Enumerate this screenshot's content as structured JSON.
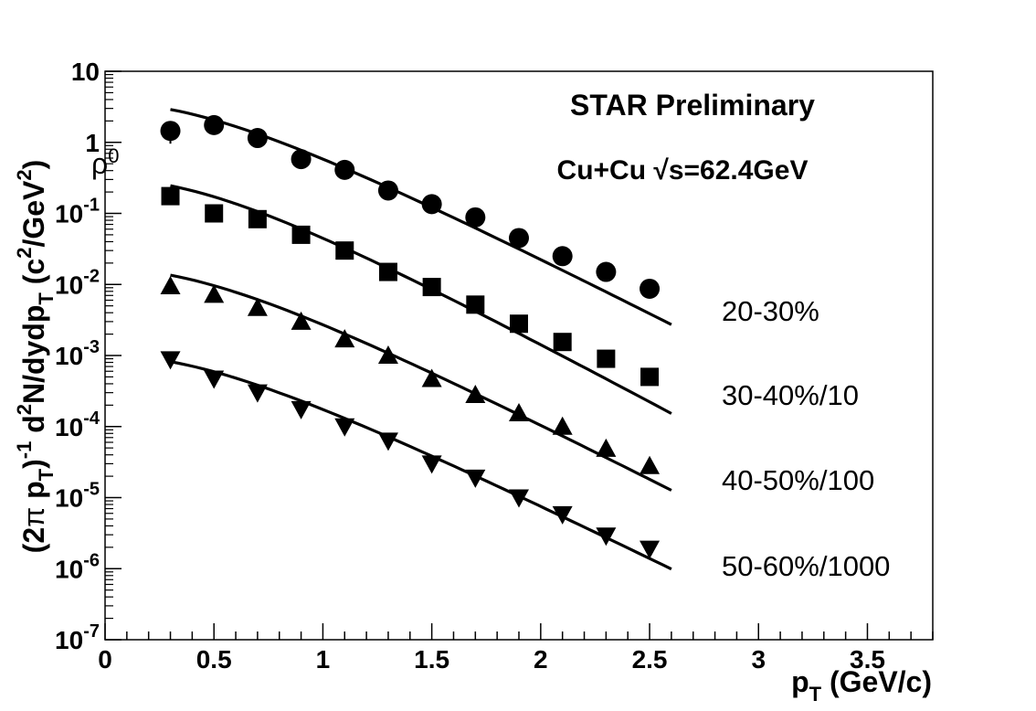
{
  "chart_data": {
    "type": "scatter",
    "title": "STAR Preliminary",
    "subtitle": "Cu+Cu √s=62.4GeV",
    "particle": "ρ",
    "particle_sup": "0",
    "xlabel": {
      "main": "p",
      "sub": "T",
      "unit": " (GeV/c)"
    },
    "ylabel": {
      "p1": "(2",
      "p2": "π",
      "p3": " p",
      "sub1": "T",
      "p4": ")",
      "sup1": "-1",
      "p5": "  d",
      "sup2": "2",
      "p6": "N/dydp",
      "sub2": "T",
      "p7": "  (c",
      "sup3": "2",
      "p8": "/GeV",
      "sup4": "2",
      "p9": ")"
    },
    "xlim": [
      0,
      3.8
    ],
    "ylim_log10": [
      -7,
      1
    ],
    "x_ticks": [
      0,
      0.5,
      1,
      1.5,
      2,
      2.5,
      3,
      3.5
    ],
    "x_tick_labels": [
      "0",
      "0.5",
      "1",
      "1.5",
      "2",
      "2.5",
      "3",
      "3.5"
    ],
    "y_ticks_log10": [
      -7,
      -6,
      -5,
      -4,
      -3,
      -2,
      -1,
      0,
      1
    ],
    "y_tick_labels": [
      {
        "base": "10",
        "exp": "-7"
      },
      {
        "base": "10",
        "exp": "-6"
      },
      {
        "base": "10",
        "exp": "-5"
      },
      {
        "base": "10",
        "exp": "-4"
      },
      {
        "base": "10",
        "exp": "-3"
      },
      {
        "base": "10",
        "exp": "-2"
      },
      {
        "base": "10",
        "exp": "-1"
      },
      {
        "base": "1",
        "exp": ""
      },
      {
        "base": "10",
        "exp": ""
      }
    ],
    "x": [
      0.3,
      0.5,
      0.7,
      0.9,
      1.1,
      1.3,
      1.5,
      1.7,
      1.9,
      2.1,
      2.3,
      2.5
    ],
    "fit_x_range": [
      0.3,
      2.6
    ],
    "series": [
      {
        "name": "20-30%",
        "marker": "circle",
        "values": [
          1.45,
          1.75,
          1.15,
          0.58,
          0.41,
          0.21,
          0.135,
          0.088,
          0.045,
          0.025,
          0.015,
          0.0087
        ],
        "fit": {
          "A": 2.9,
          "T": 0.27
        }
      },
      {
        "name": "30-40%/10",
        "marker": "square",
        "values": [
          0.175,
          0.1,
          0.083,
          0.05,
          0.03,
          0.015,
          0.0092,
          0.0052,
          0.0028,
          0.00155,
          0.0009,
          0.0005
        ],
        "fit": {
          "A": 0.245,
          "T": 0.255
        }
      },
      {
        "name": "40-50%/100",
        "marker": "triangle-up",
        "values": [
          0.0095,
          0.0072,
          0.0047,
          0.003,
          0.0017,
          0.001,
          0.00047,
          0.00028,
          0.000155,
          0.0001,
          4.9e-05,
          2.8e-05
        ],
        "fit": {
          "A": 0.0135,
          "T": 0.27
        }
      },
      {
        "name": "50-60%/1000",
        "marker": "triangle-down",
        "values": [
          0.00088,
          0.00047,
          0.0003,
          0.000175,
          0.0001,
          6.3e-05,
          3e-05,
          1.9e-05,
          1e-05,
          5.8e-06,
          2.9e-06,
          1.9e-06
        ],
        "fit": {
          "A": 0.00082,
          "T": 0.28
        }
      }
    ]
  }
}
